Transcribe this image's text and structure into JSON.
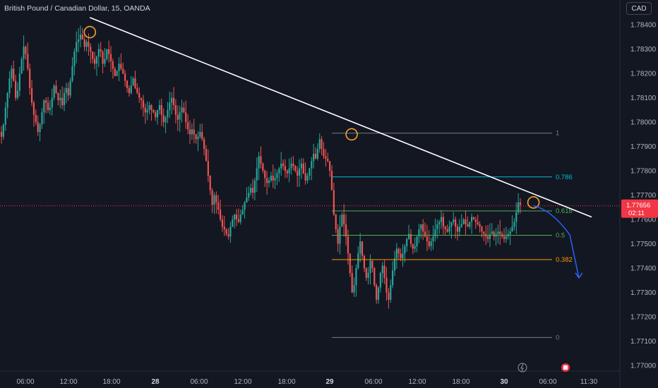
{
  "header": {
    "title": "British Pound / Canadian Dollar, 15, OANDA",
    "currency_button": "CAD"
  },
  "colors": {
    "background": "#131722",
    "up": "#26a69a",
    "down": "#ef5350",
    "trendline": "#ffffff",
    "pivot_circle": "#f7a035",
    "projection": "#2962ff",
    "price_line": "#f23645",
    "fib_1": "#787b86",
    "fib_0786": "#00bcd4",
    "fib_0618": "#4caf50",
    "fib_05": "#4caf50",
    "fib_0382": "#ff9800",
    "fib_0": "#787b86"
  },
  "price_marker": {
    "price": "1.77656",
    "countdown": "02:11",
    "value": 1.77656
  },
  "chart_data": {
    "type": "candlestick",
    "title": "British Pound / Canadian Dollar, 15, OANDA",
    "x_tick_labels": [
      "06:00",
      "12:00",
      "18:00",
      "28",
      "06:00",
      "12:00",
      "18:00",
      "29",
      "06:00",
      "12:00",
      "18:00",
      "30",
      "06:00",
      "11:30"
    ],
    "y_tick_labels": [
      "1.78400",
      "1.78300",
      "1.78200",
      "1.78100",
      "1.78000",
      "1.77900",
      "1.77800",
      "1.77700",
      "1.77600",
      "1.77500",
      "1.77400",
      "1.77300",
      "1.77200",
      "1.77100",
      "1.77000"
    ],
    "ylim": [
      1.77,
      1.7845
    ],
    "grid": false,
    "trendline": {
      "from": {
        "time": "27 15:00",
        "price": 1.7843
      },
      "to": {
        "time": "30 12:00",
        "price": 1.7761
      }
    },
    "pivot_points": [
      {
        "time": "27 15:00",
        "price": 1.7837
      },
      {
        "time": "29 03:00",
        "price": 1.7795
      },
      {
        "time": "30 04:00",
        "price": 1.7767
      }
    ],
    "fibonacci": [
      {
        "level": "1",
        "price": 1.77955
      },
      {
        "level": "0.786",
        "price": 1.77775
      },
      {
        "level": "0.618",
        "price": 1.77635
      },
      {
        "level": "0.5",
        "price": 1.77535
      },
      {
        "level": "0.382",
        "price": 1.77435
      },
      {
        "level": "0",
        "price": 1.77115
      }
    ],
    "projection": [
      {
        "time": "30 04:00",
        "price": 1.77656
      },
      {
        "time": "30 06:30",
        "price": 1.7764
      },
      {
        "time": "30 09:00",
        "price": 1.7756
      },
      {
        "time": "30 10:15",
        "price": 1.7736
      }
    ],
    "series_close": [
      1.7794,
      1.7799,
      1.7806,
      1.7812,
      1.7818,
      1.7822,
      1.7817,
      1.781,
      1.7813,
      1.782,
      1.7826,
      1.7831,
      1.7828,
      1.7822,
      1.7814,
      1.7808,
      1.7803,
      1.78,
      1.7796,
      1.7799,
      1.7804,
      1.7809,
      1.7808,
      1.7805,
      1.7806,
      1.781,
      1.7815,
      1.7812,
      1.7809,
      1.781,
      1.7807,
      1.7812,
      1.7814,
      1.7811,
      1.7817,
      1.7823,
      1.7829,
      1.7833,
      1.7834,
      1.7836,
      1.7834,
      1.7831,
      1.7833,
      1.7831,
      1.7829,
      1.7826,
      1.7824,
      1.7827,
      1.783,
      1.7829,
      1.7824,
      1.7826,
      1.783,
      1.7828,
      1.7825,
      1.7822,
      1.7819,
      1.7821,
      1.7824,
      1.7822,
      1.782,
      1.7817,
      1.7814,
      1.7812,
      1.7815,
      1.7818,
      1.7814,
      1.7812,
      1.781,
      1.7809,
      1.7806,
      1.7804,
      1.7805,
      1.7807,
      1.7805,
      1.7804,
      1.7802,
      1.7805,
      1.7807,
      1.7803,
      1.78,
      1.7802,
      1.7805,
      1.7808,
      1.781,
      1.7807,
      1.7803,
      1.7801,
      1.7804,
      1.7806,
      1.7804,
      1.78,
      1.7797,
      1.7795,
      1.7797,
      1.7795,
      1.7793,
      1.7794,
      1.7796,
      1.7793,
      1.7789,
      1.7784,
      1.7778,
      1.7772,
      1.7766,
      1.777,
      1.7767,
      1.7764,
      1.776,
      1.7757,
      1.7756,
      1.7754,
      1.7753,
      1.7757,
      1.776,
      1.7762,
      1.776,
      1.7759,
      1.7762,
      1.7764,
      1.7767,
      1.7769,
      1.7771,
      1.7773,
      1.7771,
      1.7776,
      1.7781,
      1.7786,
      1.7783,
      1.778,
      1.7777,
      1.7775,
      1.7776,
      1.7778,
      1.7776,
      1.7777,
      1.7779,
      1.7781,
      1.7783,
      1.7782,
      1.778,
      1.7779,
      1.7781,
      1.7783,
      1.7782,
      1.778,
      1.7778,
      1.7781,
      1.7783,
      1.7779,
      1.7776,
      1.7778,
      1.7781,
      1.7784,
      1.7787,
      1.7785,
      1.7789,
      1.7793,
      1.7789,
      1.7786,
      1.7785,
      1.7784,
      1.778,
      1.7772,
      1.7762,
      1.7756,
      1.775,
      1.7757,
      1.7762,
      1.7758,
      1.7753,
      1.7746,
      1.7738,
      1.773,
      1.7733,
      1.774,
      1.7746,
      1.7751,
      1.7745,
      1.774,
      1.7736,
      1.7738,
      1.7743,
      1.774,
      1.7733,
      1.7727,
      1.7732,
      1.7738,
      1.7741,
      1.7736,
      1.773,
      1.7727,
      1.7733,
      1.7739,
      1.7744,
      1.7748,
      1.7746,
      1.7744,
      1.7746,
      1.7749,
      1.7752,
      1.7754,
      1.775,
      1.7748,
      1.7749,
      1.7753,
      1.7756,
      1.7758,
      1.7755,
      1.7753,
      1.7751,
      1.7749,
      1.7751,
      1.7753,
      1.7756,
      1.7758,
      1.7759,
      1.7761,
      1.7757,
      1.7756,
      1.7755,
      1.7757,
      1.7759,
      1.776,
      1.7757,
      1.7755,
      1.7757,
      1.7758,
      1.776,
      1.7758,
      1.7757,
      1.7759,
      1.7761,
      1.776,
      1.7759,
      1.7758,
      1.7757,
      1.7755,
      1.7754,
      1.7753,
      1.7752,
      1.7754,
      1.7755,
      1.7753,
      1.7754,
      1.7755,
      1.7754,
      1.7753,
      1.7752,
      1.7753,
      1.7754,
      1.7755,
      1.7757,
      1.7759,
      1.7763,
      1.7767,
      1.7766
    ]
  }
}
